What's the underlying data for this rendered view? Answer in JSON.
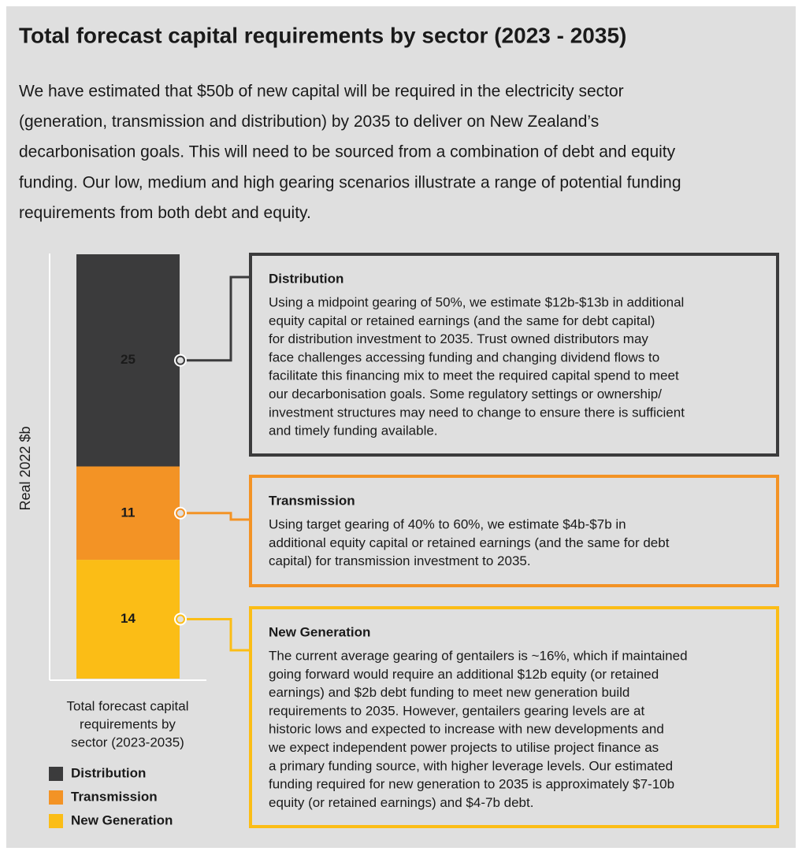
{
  "title": "Total forecast capital requirements by sector (2023 - 2035)",
  "intro": [
    "We have estimated that $50b of new capital will be required in the electricity sector",
    "(generation, transmission and distribution) by 2035 to deliver on New Zealand’s",
    "decarbonisation goals. This will need to be sourced from a combination of debt and equity",
    "funding. Our low, medium and high gearing scenarios illustrate a range of potential funding",
    "requirements from both debt and equity."
  ],
  "chart_data": {
    "type": "stacked_bar",
    "ylabel": "Real 2022 $b",
    "xlabel": [
      "Total forecast capital",
      "requirements by",
      "sector (2023-2035)"
    ],
    "ylim": [
      0,
      50
    ],
    "series": [
      {
        "name": "Distribution",
        "color": "#3b3b3c",
        "values": [
          25
        ]
      },
      {
        "name": "Transmission",
        "color": "#f39325",
        "values": [
          11
        ]
      },
      {
        "name": "New Generation",
        "color": "#fbbd16",
        "values": [
          14
        ]
      }
    ]
  },
  "callouts": [
    {
      "lines": [
        "Using a midpoint gearing of 50%, we estimate $12b-$13b in additional",
        "equity capital or retained earnings (and the same for debt capital)",
        "for distribution investment to 2035. Trust owned distributors may",
        "face challenges accessing funding and changing dividend flows to",
        "facilitate this financing mix to meet the required capital spend to meet",
        "our decarbonisation goals.  Some regulatory settings or ownership/",
        "investment structures may need to change to ensure there is sufficient",
        "and timely funding available."
      ]
    },
    {
      "lines": [
        "Using target gearing of 40% to 60%, we estimate $4b-$7b in",
        "additional equity capital or retained earnings (and the same for debt",
        "capital) for transmission investment to 2035."
      ]
    },
    {
      "lines": [
        "The current average gearing of gentailers is ~16%, which if maintained",
        "going forward would require an additional $12b equity (or retained",
        "earnings) and $2b debt funding to meet new generation build",
        "requirements to 2035. However, gentailers gearing levels are at",
        "historic lows and expected to increase with new developments and",
        "we expect independent power projects to utilise project finance as",
        "a primary funding source, with higher leverage levels. Our estimated",
        "funding required for new generation to 2035 is approximately $7-10b",
        "equity (or retained earnings) and $4-7b debt."
      ]
    }
  ]
}
